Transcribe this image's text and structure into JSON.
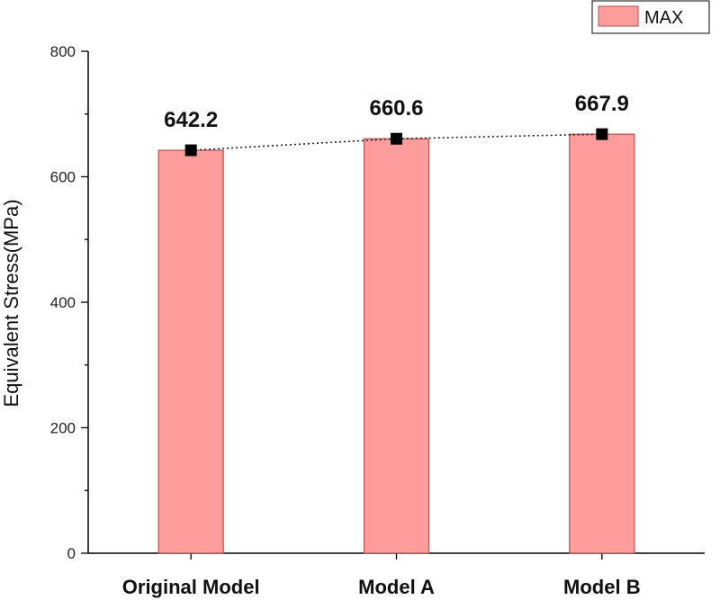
{
  "chart_data": {
    "type": "bar",
    "categories": [
      "Original Model",
      "Model A",
      "Model B"
    ],
    "series": [
      {
        "name": "MAX",
        "values": [
          642.2,
          660.6,
          667.9
        ]
      }
    ],
    "data_labels": [
      "642.2",
      "660.6",
      "667.9"
    ],
    "overlay": {
      "type": "line",
      "style": "dotted",
      "marker": "square",
      "values": [
        642.2,
        660.6,
        667.9
      ]
    },
    "title": "",
    "xlabel": "",
    "ylabel": "Equivalent Stress(MPa)",
    "ylim": [
      0,
      800
    ],
    "yticks": [
      0,
      200,
      400,
      600,
      800
    ],
    "ytick_labels": [
      "0",
      "200",
      "400",
      "600",
      "800"
    ],
    "grid": false,
    "legend_position": "top-right",
    "colors": {
      "bar_fill": "#ff9c9c",
      "bar_stroke": "#b05050",
      "marker": "#000000",
      "axis": "#000000"
    }
  }
}
